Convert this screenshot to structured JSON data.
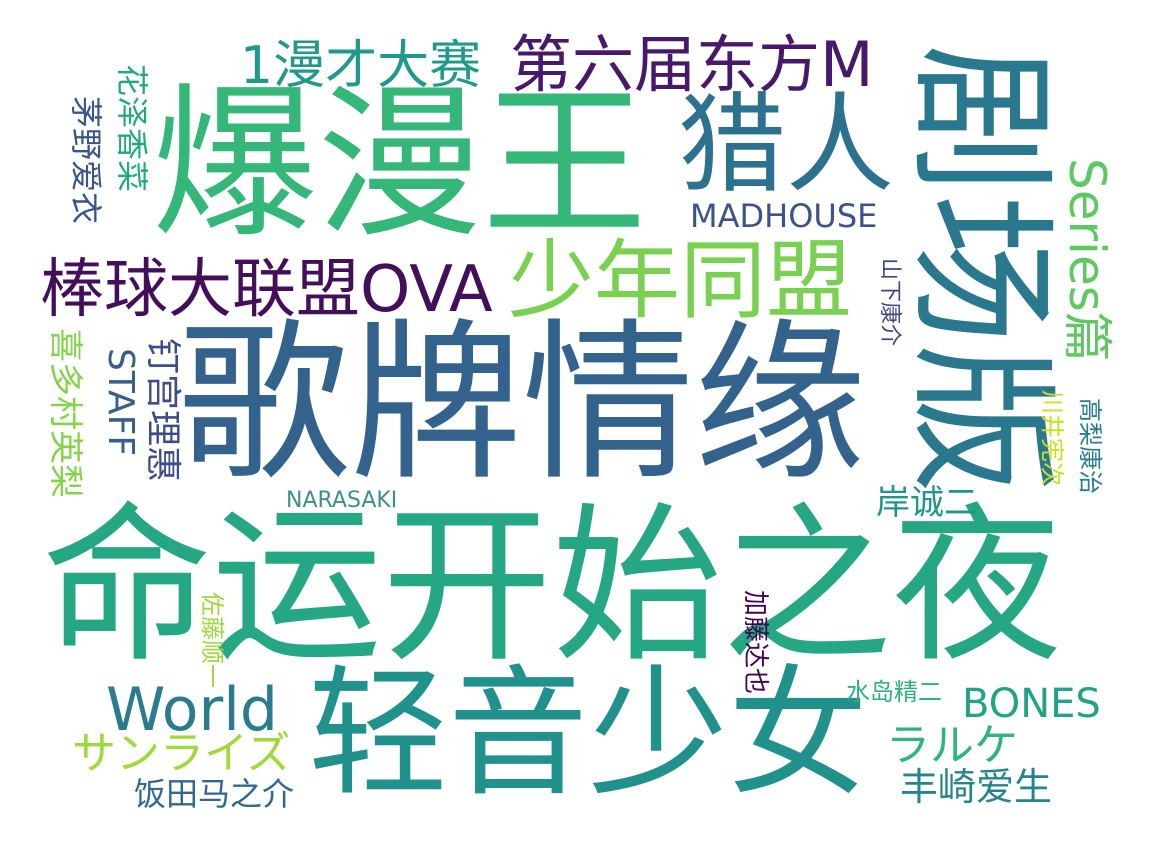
{
  "words": [
    {
      "text": "命运开始之夜",
      "color": "#26a784"
    },
    {
      "text": "歌牌情缘",
      "color": "#33638d"
    },
    {
      "text": "爆漫王",
      "color": "#35b779"
    },
    {
      "text": "剧场版",
      "color": "#29788e"
    },
    {
      "text": "轻音少女",
      "color": "#21918c"
    },
    {
      "text": "猎人",
      "color": "#2c728e"
    },
    {
      "text": "少年同盟",
      "color": "#7ad151"
    },
    {
      "text": "棒球大联盟OVA",
      "color": "#440f5a"
    },
    {
      "text": "第六届东方M",
      "color": "#48186a"
    },
    {
      "text": "1漫才大赛",
      "color": "#1f9a8a"
    },
    {
      "text": "Series篇",
      "color": "#5ec962"
    },
    {
      "text": "World",
      "color": "#2a7b8e"
    },
    {
      "text": "MADHOUSE",
      "color": "#3b528b"
    },
    {
      "text": "BONES",
      "color": "#20a386"
    },
    {
      "text": "サンライズ",
      "color": "#a0da39"
    },
    {
      "text": "ラルケ",
      "color": "#2fb47c"
    },
    {
      "text": "STAFF",
      "color": "#355f8d"
    },
    {
      "text": "钉宫理惠",
      "color": "#3e4c8a"
    },
    {
      "text": "喜多村英梨",
      "color": "#84d44b"
    },
    {
      "text": "茅野爱衣",
      "color": "#39568c"
    },
    {
      "text": "花泽香菜",
      "color": "#22a884"
    },
    {
      "text": "岸诚二",
      "color": "#1f968b"
    },
    {
      "text": "丰崎爱生",
      "color": "#25858e"
    },
    {
      "text": "饭田马之介",
      "color": "#31688e"
    },
    {
      "text": "NARASAKI",
      "color": "#3f8e8c"
    },
    {
      "text": "水岛精二",
      "color": "#2db27d"
    },
    {
      "text": "加藤达也",
      "color": "#440154"
    },
    {
      "text": "佐藤顺一",
      "color": "#9bd93c"
    },
    {
      "text": "山下康介",
      "color": "#404688"
    },
    {
      "text": "川井宪次",
      "color": "#c8e020"
    },
    {
      "text": "高梨康治",
      "color": "#287d8e"
    }
  ]
}
